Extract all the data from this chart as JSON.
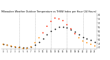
{
  "title": "Milwaukee Weather Outdoor Temperature vs THSW Index per Hour (24 Hours)",
  "background_color": "#ffffff",
  "grid_color": "#999999",
  "hours": [
    0,
    1,
    2,
    3,
    4,
    5,
    6,
    7,
    8,
    9,
    10,
    11,
    12,
    13,
    14,
    15,
    16,
    17,
    18,
    19,
    20,
    21,
    22,
    23
  ],
  "temp": [
    44,
    43,
    42,
    41,
    41,
    40,
    40,
    41,
    43,
    47,
    51,
    56,
    60,
    63,
    65,
    65,
    64,
    62,
    59,
    56,
    53,
    51,
    49,
    47
  ],
  "thsw": [
    44,
    43,
    42,
    41,
    40,
    39,
    39,
    41,
    46,
    52,
    58,
    66,
    72,
    76,
    75,
    73,
    68,
    63,
    57,
    52,
    48,
    46,
    44,
    42
  ],
  "temp_color": "#000000",
  "thsw_color_low": "#ff8800",
  "thsw_color_high": "#ff2200",
  "thsw_threshold": 55,
  "ylim": [
    38,
    82
  ],
  "xlim": [
    -0.5,
    23.5
  ],
  "yticks": [
    40,
    45,
    50,
    55,
    60,
    65,
    70,
    75,
    80
  ],
  "ytick_labels": [
    "40",
    "45",
    "50",
    "55",
    "60",
    "65",
    "70",
    "75",
    "80"
  ],
  "xticks": [
    0,
    1,
    2,
    3,
    4,
    5,
    6,
    7,
    8,
    9,
    10,
    11,
    12,
    13,
    14,
    15,
    16,
    17,
    18,
    19,
    20,
    21,
    22,
    23
  ],
  "xtick_labels": [
    "0",
    "1",
    "2",
    "3",
    "4",
    "5",
    "6",
    "7",
    "8",
    "9",
    "10",
    "11",
    "12",
    "13",
    "14",
    "15",
    "16",
    "17",
    "18",
    "19",
    "20",
    "21",
    "22",
    "23"
  ],
  "vgrid_hours": [
    4,
    8,
    12,
    16,
    20
  ],
  "title_fontsize": 2.5,
  "tick_fontsize": 1.8,
  "dot_size": 1.8
}
